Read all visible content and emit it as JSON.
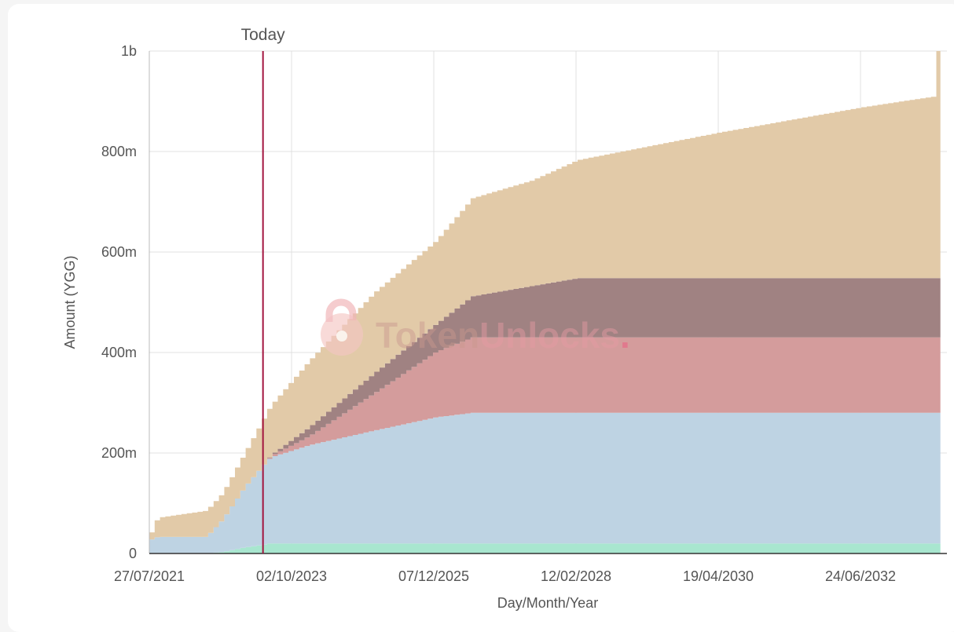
{
  "chart_data": {
    "type": "area",
    "stacked": true,
    "xlabel": "Day/Month/Year",
    "ylabel": "Amount (YGG)",
    "x_tick_labels": [
      "27/07/2021",
      "02/10/2023",
      "07/12/2025",
      "12/02/2028",
      "19/04/2030",
      "24/06/2032"
    ],
    "y_tick_labels": [
      "0",
      "200m",
      "400m",
      "600m",
      "800m",
      "1b"
    ],
    "ylim": [
      0,
      1000000000
    ],
    "xlim": [
      "2021-07-27",
      "2033-09-15"
    ],
    "grid": true,
    "legend": "none",
    "today_marker": {
      "label": "Today",
      "date": "2023-04-25"
    },
    "watermark": {
      "part1": "Token",
      "part2": "Unlocks",
      "dot": "."
    },
    "series": [
      {
        "color": "#a8e6cf",
        "points": [
          [
            "2021-07-27",
            0
          ],
          [
            "2022-06-01",
            0
          ],
          [
            "2022-09-01",
            3000000
          ],
          [
            "2023-01-01",
            12000000
          ],
          [
            "2023-04-25",
            18000000
          ],
          [
            "2023-05-01",
            20000000
          ],
          [
            "2033-09-15",
            20000000
          ]
        ]
      },
      {
        "color": "#bed3e3",
        "points": [
          [
            "2021-07-27",
            28000000
          ],
          [
            "2021-09-01",
            33000000
          ],
          [
            "2021-10-01",
            33000000
          ],
          [
            "2022-06-01",
            33000000
          ],
          [
            "2022-09-01",
            65000000
          ],
          [
            "2023-01-01",
            120000000
          ],
          [
            "2023-04-25",
            162000000
          ],
          [
            "2023-06-01",
            172000000
          ],
          [
            "2024-01-01",
            196000000
          ],
          [
            "2025-01-01",
            225000000
          ],
          [
            "2025-12-07",
            251000000
          ],
          [
            "2026-07-01",
            260000000
          ],
          [
            "2033-09-15",
            260000000
          ]
        ]
      },
      {
        "color": "#d49c9c",
        "points": [
          [
            "2021-07-27",
            0
          ],
          [
            "2023-04-25",
            0
          ],
          [
            "2023-07-01",
            5000000
          ],
          [
            "2024-01-01",
            18000000
          ],
          [
            "2025-01-01",
            75000000
          ],
          [
            "2025-12-07",
            130000000
          ],
          [
            "2026-07-01",
            150000000
          ],
          [
            "2033-09-15",
            150000000
          ]
        ]
      },
      {
        "color": "#a08282",
        "points": [
          [
            "2021-07-27",
            0
          ],
          [
            "2023-04-25",
            0
          ],
          [
            "2023-07-01",
            4000000
          ],
          [
            "2024-01-01",
            18000000
          ],
          [
            "2025-01-01",
            40000000
          ],
          [
            "2025-12-07",
            55000000
          ],
          [
            "2026-07-01",
            82000000
          ],
          [
            "2028-02-12",
            118000000
          ],
          [
            "2033-09-15",
            118000000
          ]
        ]
      },
      {
        "color": "#e2caa8",
        "points": [
          [
            "2021-07-27",
            14000000
          ],
          [
            "2021-09-01",
            38000000
          ],
          [
            "2022-06-01",
            52000000
          ],
          [
            "2022-09-01",
            52000000
          ],
          [
            "2023-01-01",
            67000000
          ],
          [
            "2023-04-25",
            93000000
          ],
          [
            "2024-01-01",
            132000000
          ],
          [
            "2025-01-01",
            160000000
          ],
          [
            "2025-12-07",
            165000000
          ],
          [
            "2026-07-01",
            195000000
          ],
          [
            "2027-06-01",
            210000000
          ],
          [
            "2028-02-12",
            235000000
          ],
          [
            "2030-04-19",
            290000000
          ],
          [
            "2032-06-24",
            340000000
          ],
          [
            "2033-08-10",
            362000000
          ],
          [
            "2033-08-15",
            452000000
          ],
          [
            "2033-09-15",
            452000000
          ]
        ]
      }
    ]
  }
}
